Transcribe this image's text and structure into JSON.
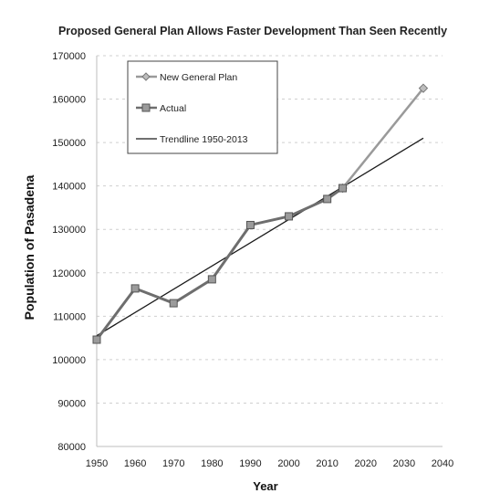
{
  "chart_data": {
    "type": "line",
    "title": "Proposed General Plan Allows Faster Development Than Seen Recently",
    "xlabel": "Year",
    "ylabel": "Population of Pasadena",
    "xlim": [
      1950,
      2040
    ],
    "ylim": [
      80000,
      170000
    ],
    "x_ticks": [
      "1950",
      "1960",
      "1970",
      "1980",
      "1990",
      "2000",
      "2010",
      "2020",
      "2030",
      "2040"
    ],
    "y_ticks": [
      "80000",
      "90000",
      "100000",
      "110000",
      "120000",
      "130000",
      "140000",
      "150000",
      "160000",
      "170000"
    ],
    "grid": true,
    "legend_position": "top-left",
    "series": [
      {
        "name": "New General Plan",
        "color": "#9a9a9a",
        "marker": "diamond",
        "x": [
          2014,
          2035
        ],
        "y": [
          139500,
          162500
        ]
      },
      {
        "name": "Actual",
        "color": "#6e6e6e",
        "marker": "square",
        "x": [
          1950,
          1960,
          1970,
          1980,
          1990,
          2000,
          2010,
          2014
        ],
        "y": [
          104600,
          116400,
          113000,
          118500,
          131000,
          133000,
          137000,
          139500
        ]
      },
      {
        "name": "Trendline 1950-2013",
        "color": "#1a1a1a",
        "marker": "none",
        "x": [
          1950,
          2035
        ],
        "y": [
          105500,
          151000
        ]
      }
    ]
  }
}
